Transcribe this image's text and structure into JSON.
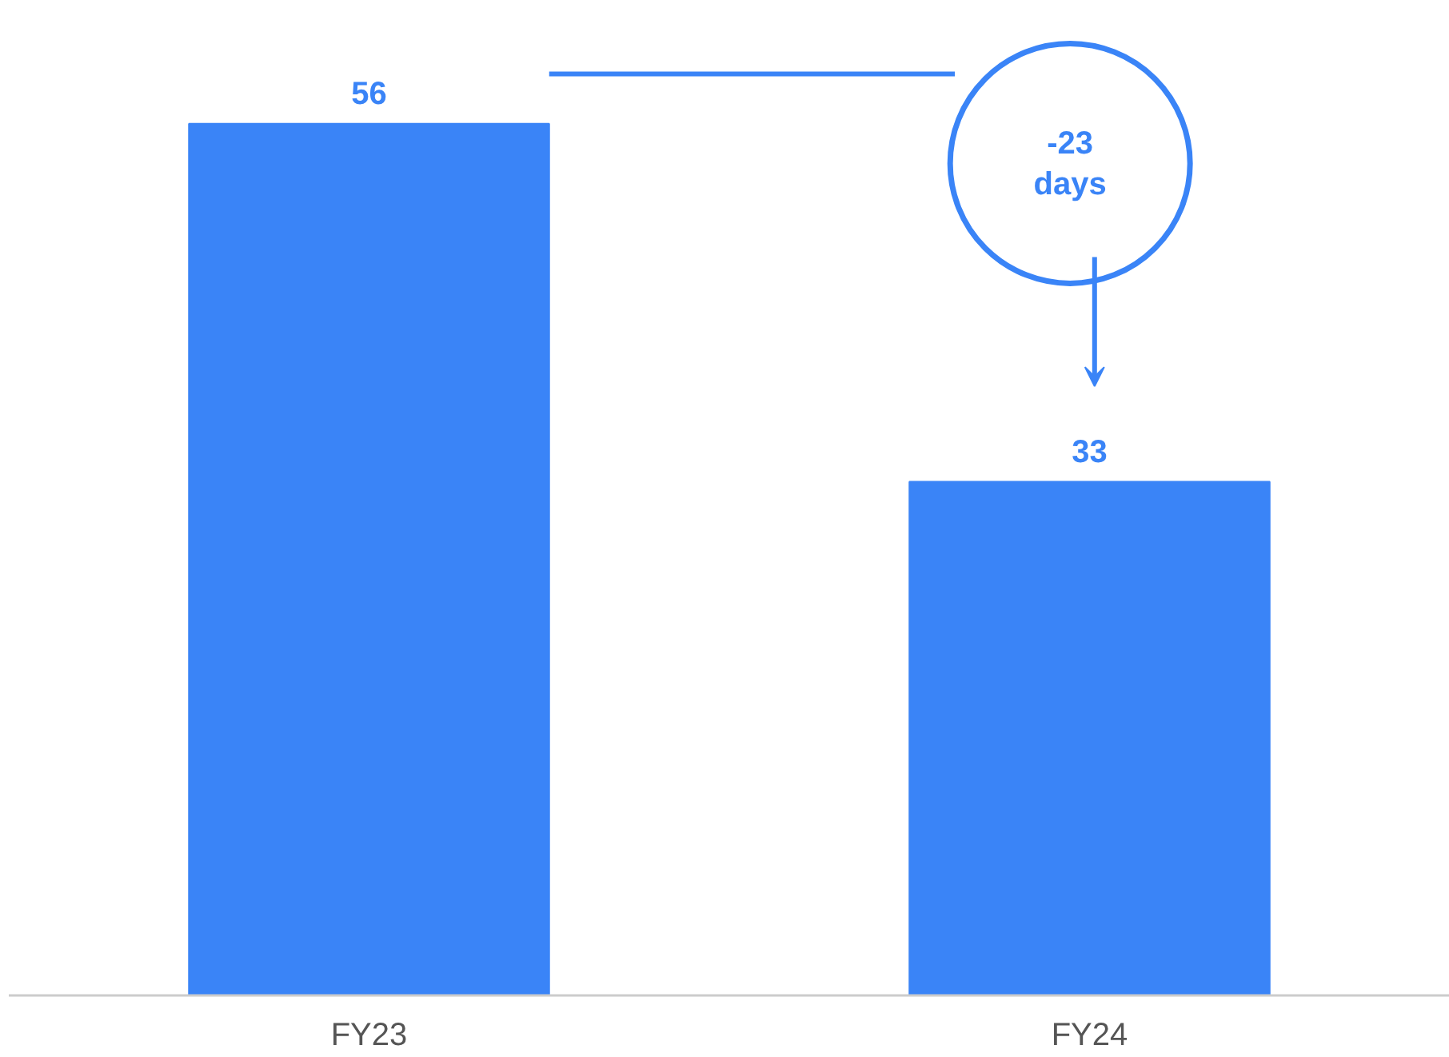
{
  "chart_data": {
    "type": "bar",
    "categories": [
      "FY23",
      "FY24"
    ],
    "values": [
      56,
      33
    ],
    "color": "#3a84f7",
    "data_labels": true,
    "grid": false,
    "annotations": [
      "-23\ndays"
    ]
  }
}
